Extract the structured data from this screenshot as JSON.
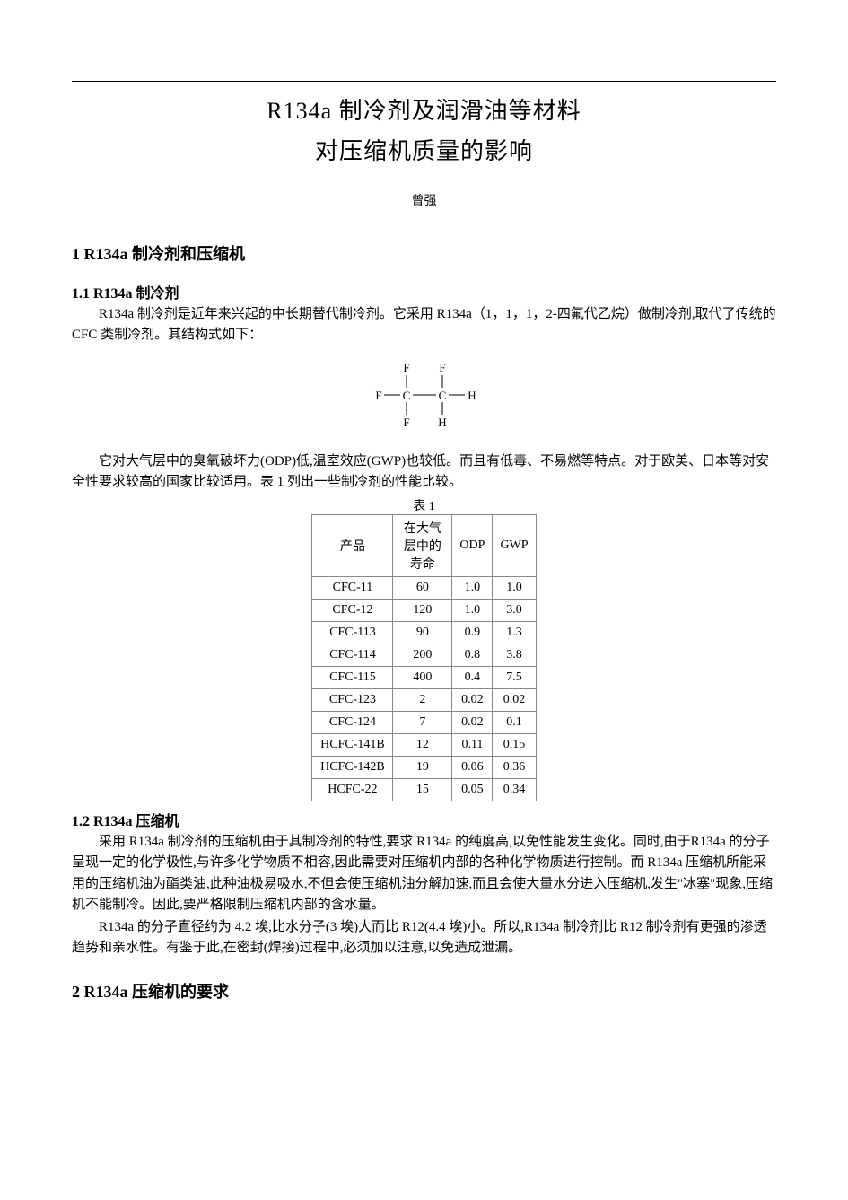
{
  "title_line1": "R134a 制冷剂及润滑油等材料",
  "title_line2": "对压缩机质量的影响",
  "author": "曾强",
  "sec1_heading": "1 R134a 制冷剂和压缩机",
  "sec1_1_heading": "1.1 R134a 制冷剂",
  "sec1_1_p1": "R134a 制冷剂是近年来兴起的中长期替代制冷剂。它采用 R134a（1，1，1，2-四氟代乙烷）做制冷剂,取代了传统的 CFC 类制冷剂。其结构式如下：",
  "sec1_1_p2": "它对大气层中的臭氧破坏力(ODP)低,温室效应(GWP)也较低。而且有低毒、不易燃等特点。对于欧美、日本等对安全性要求较高的国家比较适用。表 1 列出一些制冷剂的性能比较。",
  "molecule": {
    "F": "F",
    "C": "C",
    "H": "H",
    "stroke": "#000000",
    "fontsize": 13
  },
  "table1": {
    "caption": "表 1",
    "columns": [
      "产品",
      "在大气层中的寿命",
      "ODP",
      "GWP"
    ],
    "rows": [
      [
        "CFC-11",
        "60",
        "1.0",
        "1.0"
      ],
      [
        "CFC-12",
        "120",
        "1.0",
        "3.0"
      ],
      [
        "CFC-113",
        "90",
        "0.9",
        "1.3"
      ],
      [
        "CFC-114",
        "200",
        "0.8",
        "3.8"
      ],
      [
        "CFC-115",
        "400",
        "0.4",
        "7.5"
      ],
      [
        "CFC-123",
        "2",
        "0.02",
        "0.02"
      ],
      [
        "CFC-124",
        "7",
        "0.02",
        "0.1"
      ],
      [
        "HCFC-141B",
        "12",
        "0.11",
        "0.15"
      ],
      [
        "HCFC-142B",
        "19",
        "0.06",
        "0.36"
      ],
      [
        "HCFC-22",
        "15",
        "0.05",
        "0.34"
      ]
    ],
    "border_color": "#888888",
    "cell_fontsize": 14
  },
  "sec1_2_heading": "1.2 R134a 压缩机",
  "sec1_2_p1": "采用 R134a 制冷剂的压缩机由于其制冷剂的特性,要求 R134a 的纯度高,以免性能发生变化。同时,由于R134a 的分子呈现一定的化学极性,与许多化学物质不相容,因此需要对压缩机内部的各种化学物质进行控制。而 R134a 压缩机所能采用的压缩机油为酯类油,此种油极易吸水,不但会使压缩机油分解加速,而且会使大量水分进入压缩机,发生\"冰塞\"现象,压缩机不能制冷。因此,要严格限制压缩机内部的含水量。",
  "sec1_2_p2": "R134a 的分子直径约为 4.2 埃,比水分子(3 埃)大而比 R12(4.4 埃)小。所以,R134a 制冷剂比 R12 制冷剂有更强的渗透趋势和亲水性。有鉴于此,在密封(焊接)过程中,必须加以注意,以免造成泄漏。",
  "sec2_heading": "2 R134a 压缩机的要求"
}
